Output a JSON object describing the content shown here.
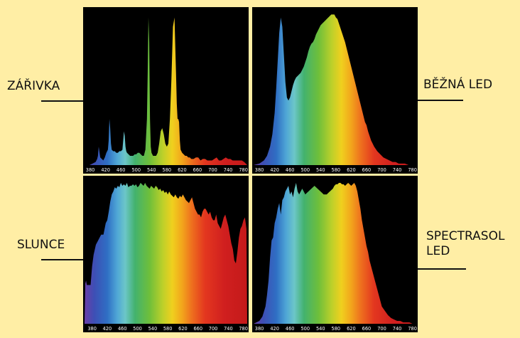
{
  "page": {
    "background": "#ffeea5"
  },
  "colors": {
    "panel_background": "#000000",
    "label_color": "#111111"
  },
  "labels": {
    "zarivka": "ZÁŘIVKA",
    "bezna": "BĚŽNÁ LED",
    "slunce": "SLUNCE",
    "spectrasol": "SPECTRASOL\nLED"
  },
  "chart_data": [
    {
      "type": "area",
      "name": "ZÁŘIVKA",
      "xlabel": "",
      "ylabel": "",
      "xlim": [
        365,
        790
      ],
      "ylim": [
        0,
        100
      ],
      "x_ticks": [
        380,
        420,
        460,
        500,
        540,
        580,
        620,
        660,
        700,
        740,
        780
      ],
      "grid": false,
      "x": [
        365,
        378,
        386,
        394,
        398,
        400,
        402,
        406,
        410,
        414,
        418,
        422,
        426,
        428,
        430,
        432,
        434,
        436,
        440,
        444,
        448,
        452,
        456,
        460,
        464,
        466,
        468,
        470,
        472,
        474,
        476,
        480,
        484,
        488,
        492,
        496,
        500,
        504,
        508,
        512,
        516,
        520,
        524,
        528,
        530,
        532,
        534,
        536,
        538,
        540,
        542,
        544,
        546,
        548,
        552,
        556,
        560,
        564,
        568,
        572,
        576,
        580,
        584,
        588,
        592,
        596,
        600,
        604,
        606,
        608,
        610,
        612,
        614,
        616,
        620,
        624,
        628,
        632,
        636,
        640,
        644,
        650,
        656,
        662,
        668,
        674,
        680,
        686,
        692,
        698,
        704,
        710,
        716,
        722,
        728,
        734,
        740,
        746,
        752,
        758,
        764,
        770,
        776,
        782,
        790
      ],
      "values": [
        0,
        0,
        1,
        2,
        4,
        6,
        12,
        5,
        4,
        3,
        5,
        8,
        10,
        16,
        30,
        24,
        14,
        10,
        9,
        9,
        8,
        8,
        9,
        9,
        10,
        16,
        22,
        19,
        12,
        9,
        8,
        7,
        6,
        6,
        6,
        7,
        7,
        8,
        8,
        7,
        6,
        6,
        10,
        30,
        60,
        96,
        80,
        30,
        12,
        8,
        7,
        6,
        6,
        6,
        6,
        8,
        14,
        22,
        24,
        20,
        14,
        12,
        14,
        30,
        56,
        90,
        96,
        60,
        40,
        30,
        30,
        28,
        16,
        10,
        8,
        7,
        6,
        6,
        5,
        5,
        4,
        4,
        5,
        5,
        3,
        4,
        4,
        3,
        3,
        3,
        4,
        5,
        3,
        3,
        4,
        5,
        4,
        4,
        3,
        3,
        3,
        3,
        3,
        2,
        0
      ]
    },
    {
      "type": "area",
      "name": "BĚŽNÁ LED",
      "xlabel": "",
      "ylabel": "",
      "xlim": [
        365,
        790
      ],
      "ylim": [
        0,
        100
      ],
      "x_ticks": [
        380,
        420,
        460,
        500,
        540,
        580,
        620,
        660,
        700,
        740,
        780
      ],
      "grid": false,
      "x": [
        365,
        380,
        392,
        400,
        408,
        414,
        420,
        424,
        428,
        432,
        436,
        440,
        444,
        448,
        452,
        456,
        460,
        464,
        468,
        472,
        476,
        480,
        484,
        488,
        492,
        496,
        500,
        504,
        508,
        512,
        516,
        520,
        524,
        528,
        532,
        536,
        540,
        544,
        548,
        552,
        556,
        560,
        564,
        568,
        572,
        576,
        580,
        584,
        588,
        592,
        596,
        600,
        604,
        608,
        612,
        616,
        620,
        624,
        628,
        632,
        636,
        640,
        644,
        648,
        652,
        656,
        660,
        664,
        668,
        672,
        676,
        680,
        688,
        696,
        704,
        712,
        720,
        728,
        736,
        744,
        752,
        760,
        770,
        780,
        790
      ],
      "values": [
        0,
        1,
        3,
        6,
        12,
        20,
        34,
        50,
        68,
        86,
        96,
        90,
        72,
        54,
        44,
        42,
        44,
        48,
        52,
        55,
        57,
        58,
        59,
        60,
        62,
        64,
        67,
        70,
        74,
        77,
        79,
        80,
        82,
        85,
        87,
        89,
        91,
        92,
        93,
        94,
        95,
        96,
        97,
        98,
        98,
        98,
        96,
        95,
        92,
        89,
        86,
        83,
        80,
        76,
        72,
        68,
        64,
        60,
        56,
        52,
        48,
        44,
        40,
        36,
        32,
        28,
        26,
        22,
        19,
        16,
        14,
        12,
        9,
        7,
        5,
        4,
        3,
        2,
        2,
        1,
        1,
        1,
        0,
        0,
        0
      ]
    },
    {
      "type": "area",
      "name": "SLUNCE",
      "xlabel": "",
      "ylabel": "",
      "xlim": [
        360,
        790
      ],
      "ylim": [
        0,
        100
      ],
      "x_ticks": [
        380,
        420,
        460,
        500,
        540,
        580,
        620,
        660,
        700,
        740,
        780
      ],
      "grid": false,
      "x": [
        360,
        362,
        364,
        366,
        370,
        376,
        380,
        384,
        390,
        396,
        400,
        404,
        410,
        416,
        420,
        424,
        428,
        432,
        436,
        440,
        444,
        448,
        452,
        456,
        460,
        464,
        468,
        472,
        476,
        480,
        484,
        488,
        492,
        496,
        500,
        504,
        508,
        512,
        516,
        520,
        524,
        528,
        532,
        536,
        540,
        544,
        548,
        552,
        556,
        560,
        564,
        568,
        572,
        576,
        580,
        584,
        588,
        592,
        596,
        600,
        604,
        608,
        612,
        616,
        620,
        624,
        628,
        632,
        636,
        640,
        644,
        648,
        652,
        656,
        660,
        664,
        668,
        672,
        676,
        680,
        684,
        688,
        692,
        696,
        700,
        704,
        708,
        712,
        716,
        720,
        724,
        728,
        732,
        736,
        740,
        744,
        748,
        752,
        756,
        760,
        764,
        768,
        772,
        776,
        780,
        784,
        786,
        788,
        790
      ],
      "values": [
        0,
        28,
        30,
        27,
        27,
        27,
        40,
        48,
        55,
        58,
        60,
        62,
        62,
        70,
        72,
        78,
        85,
        90,
        92,
        95,
        94,
        96,
        95,
        98,
        96,
        97,
        96,
        98,
        95,
        96,
        96,
        97,
        96,
        97,
        95,
        96,
        98,
        97,
        96,
        98,
        96,
        95,
        94,
        96,
        95,
        94,
        96,
        95,
        93,
        94,
        92,
        93,
        91,
        92,
        90,
        92,
        90,
        89,
        88,
        90,
        88,
        87,
        89,
        88,
        90,
        88,
        86,
        85,
        84,
        86,
        88,
        84,
        80,
        78,
        76,
        76,
        74,
        78,
        80,
        80,
        78,
        76,
        78,
        74,
        72,
        72,
        76,
        70,
        68,
        66,
        70,
        74,
        76,
        72,
        68,
        62,
        56,
        52,
        44,
        42,
        50,
        60,
        66,
        68,
        72,
        74,
        70,
        66,
        0
      ]
    },
    {
      "type": "area",
      "name": "SPECTRASOL LED",
      "xlabel": "",
      "ylabel": "",
      "xlim": [
        365,
        790
      ],
      "ylim": [
        0,
        100
      ],
      "x_ticks": [
        380,
        420,
        460,
        500,
        540,
        580,
        620,
        660,
        700,
        740,
        780
      ],
      "grid": false,
      "x": [
        365,
        380,
        388,
        396,
        400,
        404,
        408,
        412,
        416,
        420,
        424,
        428,
        432,
        436,
        440,
        444,
        448,
        452,
        456,
        460,
        464,
        468,
        472,
        476,
        480,
        484,
        488,
        492,
        496,
        500,
        504,
        508,
        512,
        516,
        520,
        524,
        528,
        532,
        536,
        540,
        544,
        548,
        552,
        556,
        560,
        564,
        568,
        572,
        576,
        580,
        584,
        588,
        592,
        596,
        600,
        604,
        608,
        612,
        616,
        620,
        624,
        628,
        632,
        636,
        640,
        644,
        648,
        652,
        656,
        660,
        664,
        668,
        672,
        676,
        680,
        684,
        688,
        692,
        696,
        700,
        708,
        716,
        724,
        732,
        740,
        748,
        756,
        764,
        772,
        780,
        790
      ],
      "values": [
        0,
        2,
        5,
        12,
        20,
        30,
        46,
        58,
        60,
        70,
        74,
        80,
        84,
        76,
        86,
        88,
        92,
        94,
        96,
        90,
        92,
        88,
        94,
        98,
        92,
        90,
        92,
        94,
        92,
        90,
        91,
        92,
        93,
        94,
        95,
        96,
        95,
        94,
        93,
        92,
        91,
        90,
        90,
        90,
        91,
        92,
        93,
        94,
        96,
        97,
        97,
        98,
        98,
        97,
        97,
        96,
        97,
        98,
        97,
        96,
        97,
        98,
        96,
        92,
        86,
        80,
        72,
        66,
        60,
        54,
        50,
        44,
        40,
        36,
        32,
        28,
        24,
        20,
        16,
        12,
        9,
        6,
        4,
        3,
        2,
        2,
        1,
        1,
        1,
        0,
        0
      ]
    }
  ]
}
